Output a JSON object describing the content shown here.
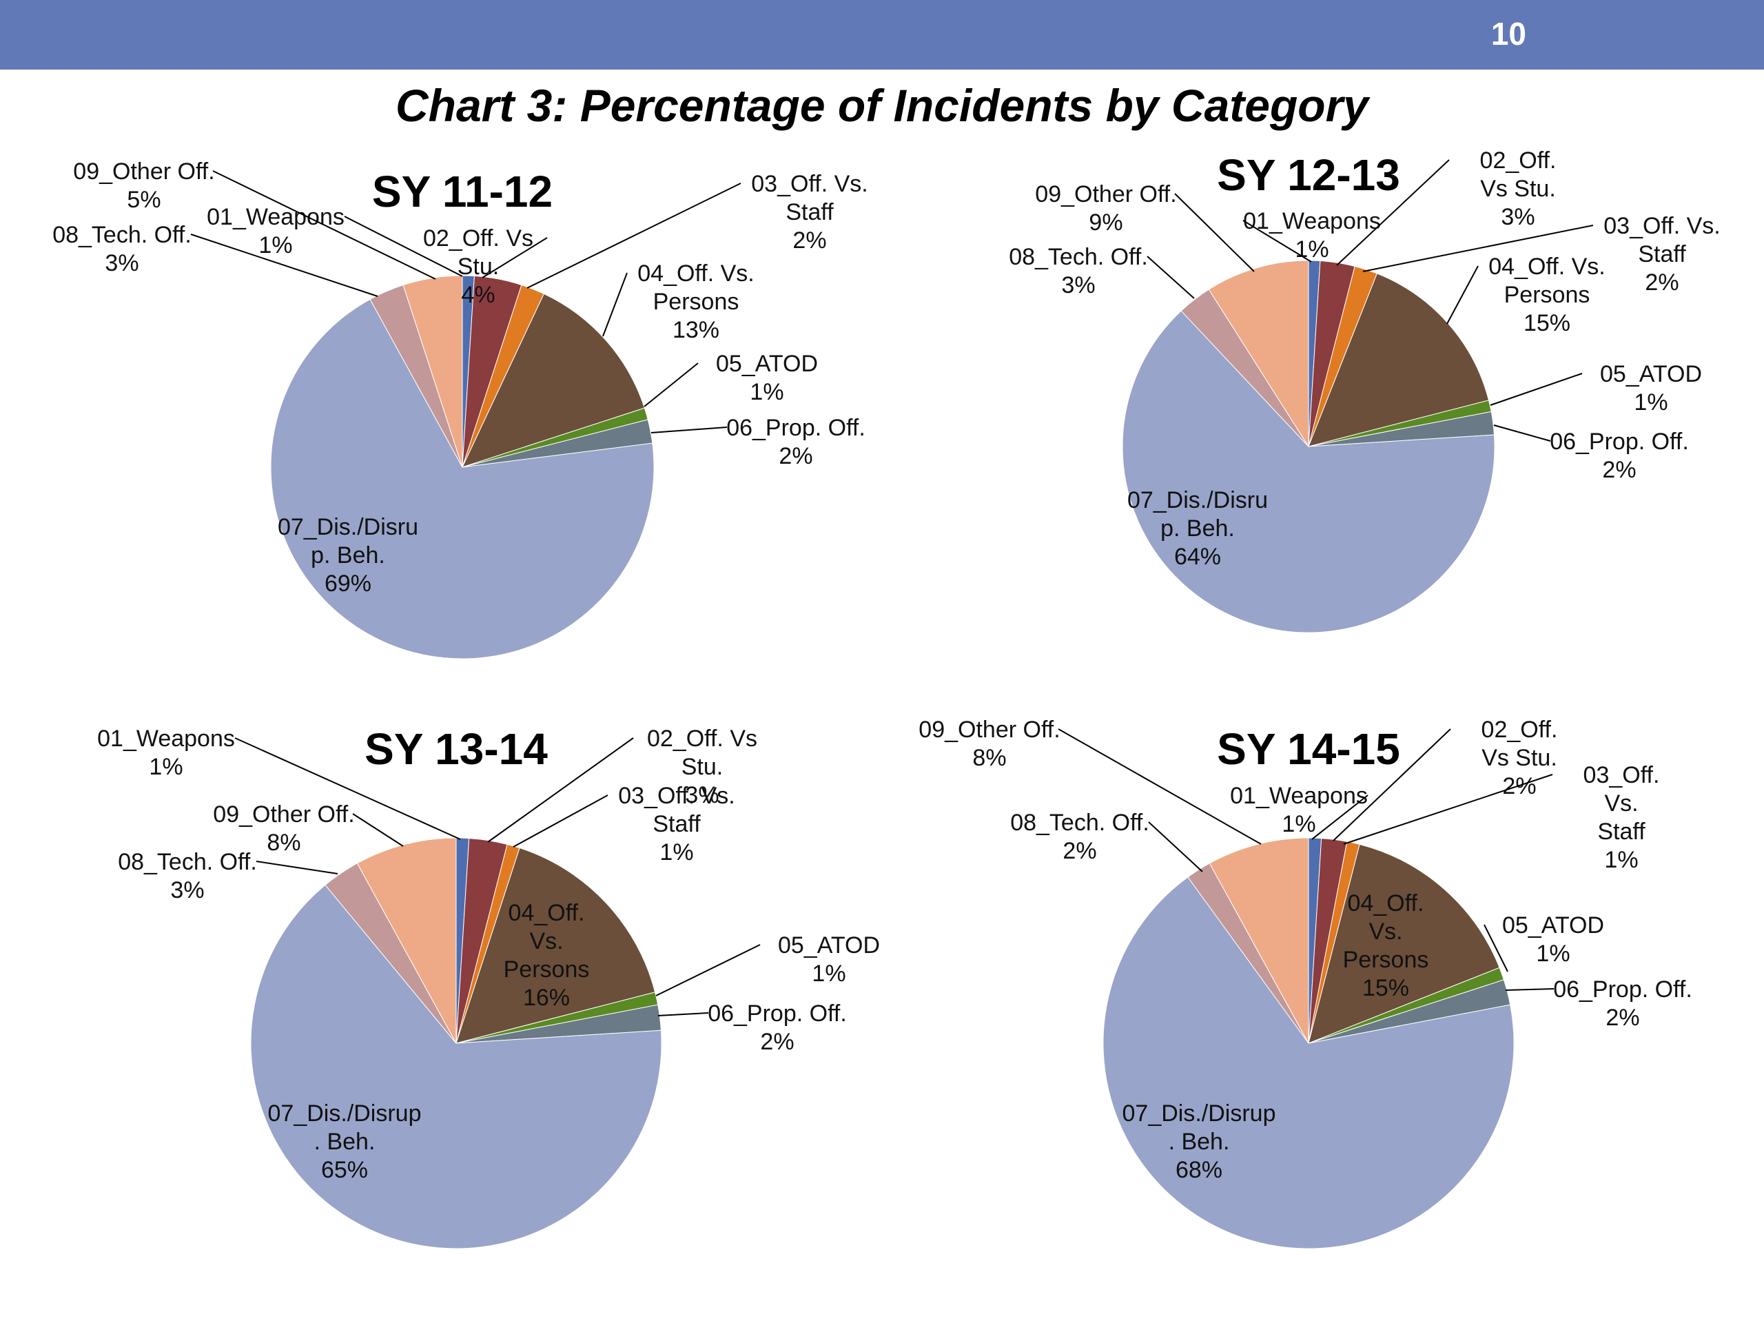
{
  "header": {
    "page_number": "10"
  },
  "title": "Chart 3: Percentage of Incidents by Category",
  "colors": {
    "header_bar": "#6279b8",
    "01_Weapons": "#4f6eb0",
    "02_Off_Vs_Stu": "#8b3c3f",
    "03_Off_Vs_Staff": "#e07b22",
    "04_Off_Vs_Persons": "#6b4f3a",
    "05_ATOD": "#5a8a23",
    "06_Prop_Off": "#6b7a87",
    "07_Dis_Disrup_Beh": "#98a4c9",
    "08_Tech_Off": "#c39898",
    "09_Other_Off": "#eeaa86"
  },
  "chart_data": [
    {
      "type": "pie",
      "title": "SY 11-12",
      "slices": [
        {
          "key": "01_Weapons",
          "value": 1,
          "label": [
            "01_Weapons",
            "1%"
          ]
        },
        {
          "key": "02_Off_Vs_Stu",
          "value": 4,
          "label": [
            "02_Off. Vs",
            "Stu.",
            "4%"
          ]
        },
        {
          "key": "03_Off_Vs_Staff",
          "value": 2,
          "label": [
            "03_Off. Vs.",
            "Staff",
            "2%"
          ]
        },
        {
          "key": "04_Off_Vs_Persons",
          "value": 13,
          "label": [
            "04_Off. Vs.",
            "Persons",
            "13%"
          ]
        },
        {
          "key": "05_ATOD",
          "value": 1,
          "label": [
            "05_ATOD",
            "1%"
          ]
        },
        {
          "key": "06_Prop_Off",
          "value": 2,
          "label": [
            "06_Prop. Off.",
            "2%"
          ]
        },
        {
          "key": "07_Dis_Disrup_Beh",
          "value": 69,
          "label": [
            "07_Dis./Disru",
            "p. Beh.",
            "69%"
          ]
        },
        {
          "key": "08_Tech_Off",
          "value": 3,
          "label": [
            "08_Tech. Off.",
            "3%"
          ]
        },
        {
          "key": "09_Other_Off",
          "value": 5,
          "label": [
            "09_Other Off.",
            "5%"
          ]
        }
      ]
    },
    {
      "type": "pie",
      "title": "SY 12-13",
      "slices": [
        {
          "key": "01_Weapons",
          "value": 1,
          "label": [
            "01_Weapons",
            "1%"
          ]
        },
        {
          "key": "02_Off_Vs_Stu",
          "value": 3,
          "label": [
            "02_Off.",
            "Vs Stu.",
            "3%"
          ]
        },
        {
          "key": "03_Off_Vs_Staff",
          "value": 2,
          "label": [
            "03_Off. Vs.",
            "Staff",
            "2%"
          ]
        },
        {
          "key": "04_Off_Vs_Persons",
          "value": 15,
          "label": [
            "04_Off. Vs.",
            "Persons",
            "15%"
          ]
        },
        {
          "key": "05_ATOD",
          "value": 1,
          "label": [
            "05_ATOD",
            "1%"
          ]
        },
        {
          "key": "06_Prop_Off",
          "value": 2,
          "label": [
            "06_Prop. Off.",
            "2%"
          ]
        },
        {
          "key": "07_Dis_Disrup_Beh",
          "value": 64,
          "label": [
            "07_Dis./Disru",
            "p. Beh.",
            "64%"
          ]
        },
        {
          "key": "08_Tech_Off",
          "value": 3,
          "label": [
            "08_Tech. Off.",
            "3%"
          ]
        },
        {
          "key": "09_Other_Off",
          "value": 9,
          "label": [
            "09_Other Off.",
            "9%"
          ]
        }
      ]
    },
    {
      "type": "pie",
      "title": "SY 13-14",
      "slices": [
        {
          "key": "01_Weapons",
          "value": 1,
          "label": [
            "01_Weapons",
            "1%"
          ]
        },
        {
          "key": "02_Off_Vs_Stu",
          "value": 3,
          "label": [
            "02_Off. Vs",
            "Stu.",
            "3%"
          ]
        },
        {
          "key": "03_Off_Vs_Staff",
          "value": 1,
          "label": [
            "03_Off. Vs.",
            "Staff",
            "1%"
          ]
        },
        {
          "key": "04_Off_Vs_Persons",
          "value": 16,
          "label": [
            "04_Off.",
            "Vs.",
            "Persons",
            "16%"
          ]
        },
        {
          "key": "05_ATOD",
          "value": 1,
          "label": [
            "05_ATOD",
            "1%"
          ]
        },
        {
          "key": "06_Prop_Off",
          "value": 2,
          "label": [
            "06_Prop. Off.",
            "2%"
          ]
        },
        {
          "key": "07_Dis_Disrup_Beh",
          "value": 65,
          "label": [
            "07_Dis./Disrup",
            ". Beh.",
            "65%"
          ]
        },
        {
          "key": "08_Tech_Off",
          "value": 3,
          "label": [
            "08_Tech. Off.",
            "3%"
          ]
        },
        {
          "key": "09_Other_Off",
          "value": 8,
          "label": [
            "09_Other Off.",
            "8%"
          ]
        }
      ]
    },
    {
      "type": "pie",
      "title": "SY 14-15",
      "slices": [
        {
          "key": "01_Weapons",
          "value": 1,
          "label": [
            "01_Weapons",
            "1%"
          ]
        },
        {
          "key": "02_Off_Vs_Stu",
          "value": 2,
          "label": [
            "02_Off.",
            "Vs Stu.",
            "2%"
          ]
        },
        {
          "key": "03_Off_Vs_Staff",
          "value": 1,
          "label": [
            "03_Off.",
            "Vs.",
            "Staff",
            "1%"
          ]
        },
        {
          "key": "04_Off_Vs_Persons",
          "value": 15,
          "label": [
            "04_Off.",
            "Vs.",
            "Persons",
            "15%"
          ]
        },
        {
          "key": "05_ATOD",
          "value": 1,
          "label": [
            "05_ATOD",
            "1%"
          ]
        },
        {
          "key": "06_Prop_Off",
          "value": 2,
          "label": [
            "06_Prop. Off.",
            "2%"
          ]
        },
        {
          "key": "07_Dis_Disrup_Beh",
          "value": 68,
          "label": [
            "07_Dis./Disrup",
            ". Beh.",
            "68%"
          ]
        },
        {
          "key": "08_Tech_Off",
          "value": 2,
          "label": [
            "08_Tech. Off.",
            "2%"
          ]
        },
        {
          "key": "09_Other_Off",
          "value": 8,
          "label": [
            "09_Other Off.",
            "8%"
          ]
        }
      ]
    }
  ]
}
